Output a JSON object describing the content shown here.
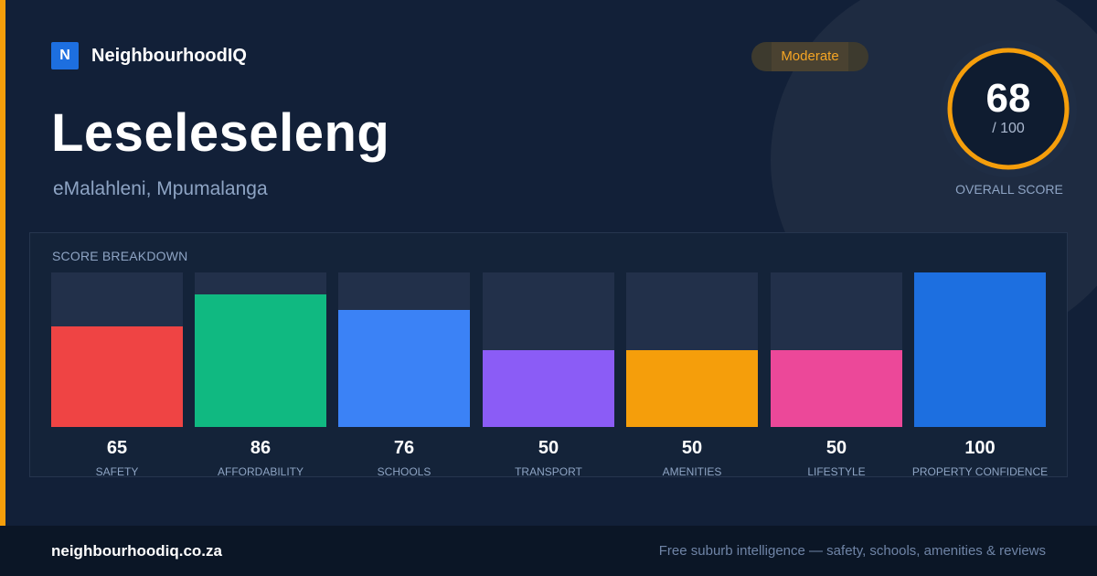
{
  "brand": {
    "logo_letter": "N",
    "name": "NeighbourhoodIQ"
  },
  "suburb": {
    "name": "Leseleseleng",
    "location": "eMalahleni, Mpumalanga"
  },
  "rating": {
    "label": "Moderate",
    "color": "#f5a524"
  },
  "overall": {
    "score": "68",
    "max": "/ 100",
    "caption": "OVERALL SCORE",
    "fraction": 0.68,
    "ring_color": "#f59e0b"
  },
  "breakdown": {
    "title": "SCORE BREAKDOWN",
    "items": [
      {
        "label": "SAFETY",
        "value": "65",
        "score": 65,
        "color": "#ef4444"
      },
      {
        "label": "AFFORDABILITY",
        "value": "86",
        "score": 86,
        "color": "#10b981"
      },
      {
        "label": "SCHOOLS",
        "value": "76",
        "score": 76,
        "color": "#3b82f6"
      },
      {
        "label": "TRANSPORT",
        "value": "50",
        "score": 50,
        "color": "#8b5cf6"
      },
      {
        "label": "AMENITIES",
        "value": "50",
        "score": 50,
        "color": "#f59e0b"
      },
      {
        "label": "LIFESTYLE",
        "value": "50",
        "score": 50,
        "color": "#ec4899"
      },
      {
        "label": "PROPERTY CONFIDENCE",
        "value": "100",
        "score": 100,
        "color": "#1d6fe0"
      }
    ]
  },
  "footer": {
    "domain": "neighbourhoodiq.co.za",
    "tagline": "Free suburb intelligence — safety, schools, amenities & reviews"
  }
}
